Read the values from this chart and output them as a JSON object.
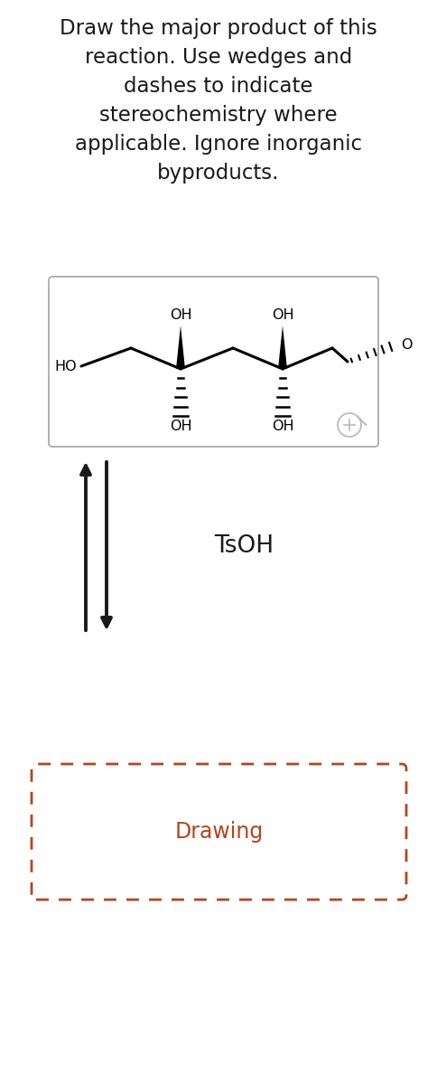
{
  "title_lines": [
    "Draw the major product of this",
    "reaction. Use wedges and",
    "dashes to indicate",
    "stereochemistry where",
    "applicable. Ignore inorganic",
    "byproducts."
  ],
  "title_fontsize": 16.5,
  "title_color": "#1a1a1a",
  "background_color": "#ffffff",
  "reagent_label": "TsOH",
  "reagent_label_fontsize": 19,
  "arrow_color": "#1a1a1a",
  "drawing_label": "Drawing",
  "drawing_label_color": "#b5451b",
  "drawing_label_fontsize": 17
}
